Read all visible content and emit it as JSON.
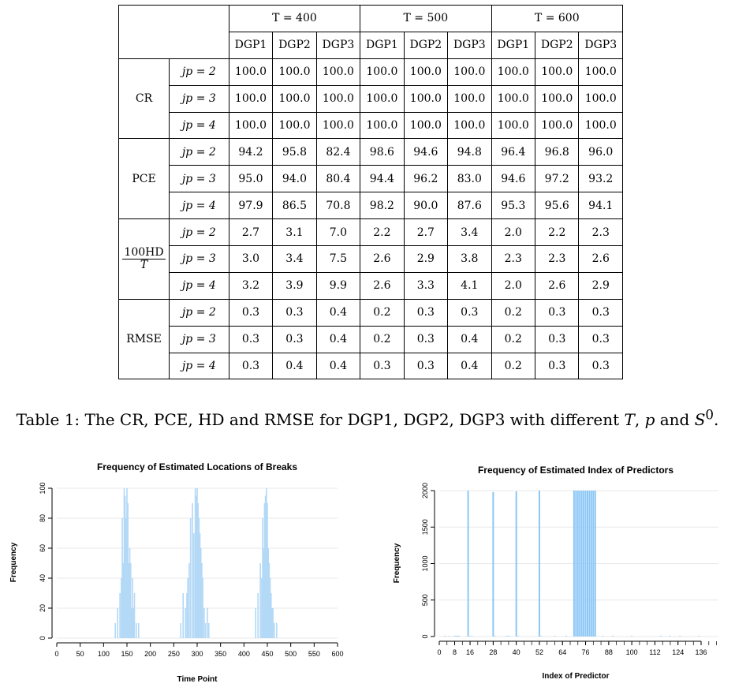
{
  "table": {
    "group_headers": [
      "T = 400",
      "T = 500",
      "T = 600"
    ],
    "dgp_headers": [
      "DGP1",
      "DGP2",
      "DGP3"
    ],
    "blocks": [
      {
        "name": "CR",
        "rows": [
          {
            "jp": "jp = 2",
            "vals": [
              "100.0",
              "100.0",
              "100.0",
              "100.0",
              "100.0",
              "100.0",
              "100.0",
              "100.0",
              "100.0"
            ]
          },
          {
            "jp": "jp = 3",
            "vals": [
              "100.0",
              "100.0",
              "100.0",
              "100.0",
              "100.0",
              "100.0",
              "100.0",
              "100.0",
              "100.0"
            ]
          },
          {
            "jp": "jp = 4",
            "vals": [
              "100.0",
              "100.0",
              "100.0",
              "100.0",
              "100.0",
              "100.0",
              "100.0",
              "100.0",
              "100.0"
            ]
          }
        ]
      },
      {
        "name": "PCE",
        "rows": [
          {
            "jp": "jp = 2",
            "vals": [
              "94.2",
              "95.8",
              "82.4",
              "98.6",
              "94.6",
              "94.8",
              "96.4",
              "96.8",
              "96.0"
            ]
          },
          {
            "jp": "jp = 3",
            "vals": [
              "95.0",
              "94.0",
              "80.4",
              "94.4",
              "96.2",
              "83.0",
              "94.6",
              "97.2",
              "93.2"
            ]
          },
          {
            "jp": "jp = 4",
            "vals": [
              "97.9",
              "86.5",
              "70.8",
              "98.2",
              "90.0",
              "87.6",
              "95.3",
              "95.6",
              "94.1"
            ]
          }
        ]
      },
      {
        "name": "100HD",
        "name_den": "T",
        "rows": [
          {
            "jp": "jp = 2",
            "vals": [
              "2.7",
              "3.1",
              "7.0",
              "2.2",
              "2.7",
              "3.4",
              "2.0",
              "2.2",
              "2.3"
            ]
          },
          {
            "jp": "jp = 3",
            "vals": [
              "3.0",
              "3.4",
              "7.5",
              "2.6",
              "2.9",
              "3.8",
              "2.3",
              "2.3",
              "2.6"
            ]
          },
          {
            "jp": "jp = 4",
            "vals": [
              "3.2",
              "3.9",
              "9.9",
              "2.6",
              "3.3",
              "4.1",
              "2.0",
              "2.6",
              "2.9"
            ]
          }
        ]
      },
      {
        "name": "RMSE",
        "rows": [
          {
            "jp": "jp = 2",
            "vals": [
              "0.3",
              "0.3",
              "0.4",
              "0.2",
              "0.3",
              "0.3",
              "0.2",
              "0.3",
              "0.3"
            ]
          },
          {
            "jp": "jp = 3",
            "vals": [
              "0.3",
              "0.3",
              "0.4",
              "0.2",
              "0.3",
              "0.4",
              "0.2",
              "0.3",
              "0.3"
            ]
          },
          {
            "jp": "jp = 4",
            "vals": [
              "0.3",
              "0.4",
              "0.4",
              "0.3",
              "0.3",
              "0.4",
              "0.2",
              "0.3",
              "0.3"
            ]
          }
        ]
      }
    ]
  },
  "caption": "Table 1: The CR, PCE, HD and RMSE for DGP1, DGP2, DGP3 with different T, p and S0.",
  "chart_data": [
    {
      "type": "bar",
      "title": "Frequency of Estimated Locations of Breaks",
      "xlabel": "Time Point",
      "ylabel": "Frequency",
      "xlim": [
        0,
        600
      ],
      "ylim": [
        0,
        100
      ],
      "xticks": [
        0,
        50,
        100,
        150,
        200,
        250,
        300,
        350,
        400,
        450,
        500,
        550,
        600
      ],
      "yticks": [
        0,
        20,
        40,
        60,
        80,
        100
      ],
      "grid": true,
      "bar_color": "#b3d9f7",
      "x": [
        125,
        130,
        135,
        138,
        140,
        142,
        144,
        146,
        148,
        150,
        152,
        154,
        156,
        158,
        160,
        162,
        164,
        166,
        170,
        175,
        265,
        270,
        275,
        278,
        280,
        283,
        286,
        290,
        293,
        296,
        298,
        300,
        302,
        304,
        306,
        308,
        310,
        312,
        315,
        318,
        322,
        325,
        425,
        430,
        435,
        438,
        440,
        442,
        444,
        446,
        448,
        450,
        452,
        454,
        456,
        458,
        460,
        462,
        465,
        470
      ],
      "y": [
        10,
        20,
        30,
        40,
        80,
        50,
        100,
        95,
        80,
        100,
        90,
        50,
        60,
        50,
        20,
        40,
        20,
        30,
        10,
        10,
        10,
        30,
        20,
        30,
        40,
        50,
        80,
        90,
        70,
        100,
        95,
        100,
        90,
        80,
        70,
        60,
        50,
        40,
        20,
        10,
        20,
        10,
        20,
        30,
        50,
        40,
        80,
        60,
        90,
        95,
        100,
        90,
        60,
        50,
        40,
        30,
        20,
        20,
        10,
        10
      ]
    },
    {
      "type": "bar",
      "title": "Frequency of Estimated Index of Predictors",
      "xlabel": "Index of Predictor",
      "ylabel": "Frequency",
      "xlim": [
        0,
        145
      ],
      "ylim": [
        0,
        2000
      ],
      "xticks": [
        0,
        8,
        16,
        28,
        40,
        52,
        64,
        76,
        88,
        100,
        112,
        124,
        136
      ],
      "yticks": [
        0,
        500,
        1000,
        1500,
        2000
      ],
      "grid": true,
      "bar_color": "#8cc8f5",
      "x": [
        3,
        5,
        8,
        9,
        10,
        15,
        16,
        17,
        28,
        29,
        35,
        36,
        40,
        41,
        52,
        53,
        60,
        66,
        70,
        71,
        72,
        73,
        74,
        75,
        76,
        77,
        78,
        79,
        80,
        81,
        85,
        90,
        100,
        115,
        120,
        125,
        135
      ],
      "y": [
        8,
        5,
        10,
        8,
        12,
        2000,
        5,
        6,
        1980,
        6,
        8,
        8,
        1990,
        6,
        2000,
        8,
        8,
        8,
        2000,
        2000,
        2000,
        2000,
        2000,
        2000,
        2000,
        2000,
        2000,
        2000,
        2000,
        2000,
        8,
        8,
        8,
        8,
        8,
        8,
        8
      ]
    }
  ]
}
